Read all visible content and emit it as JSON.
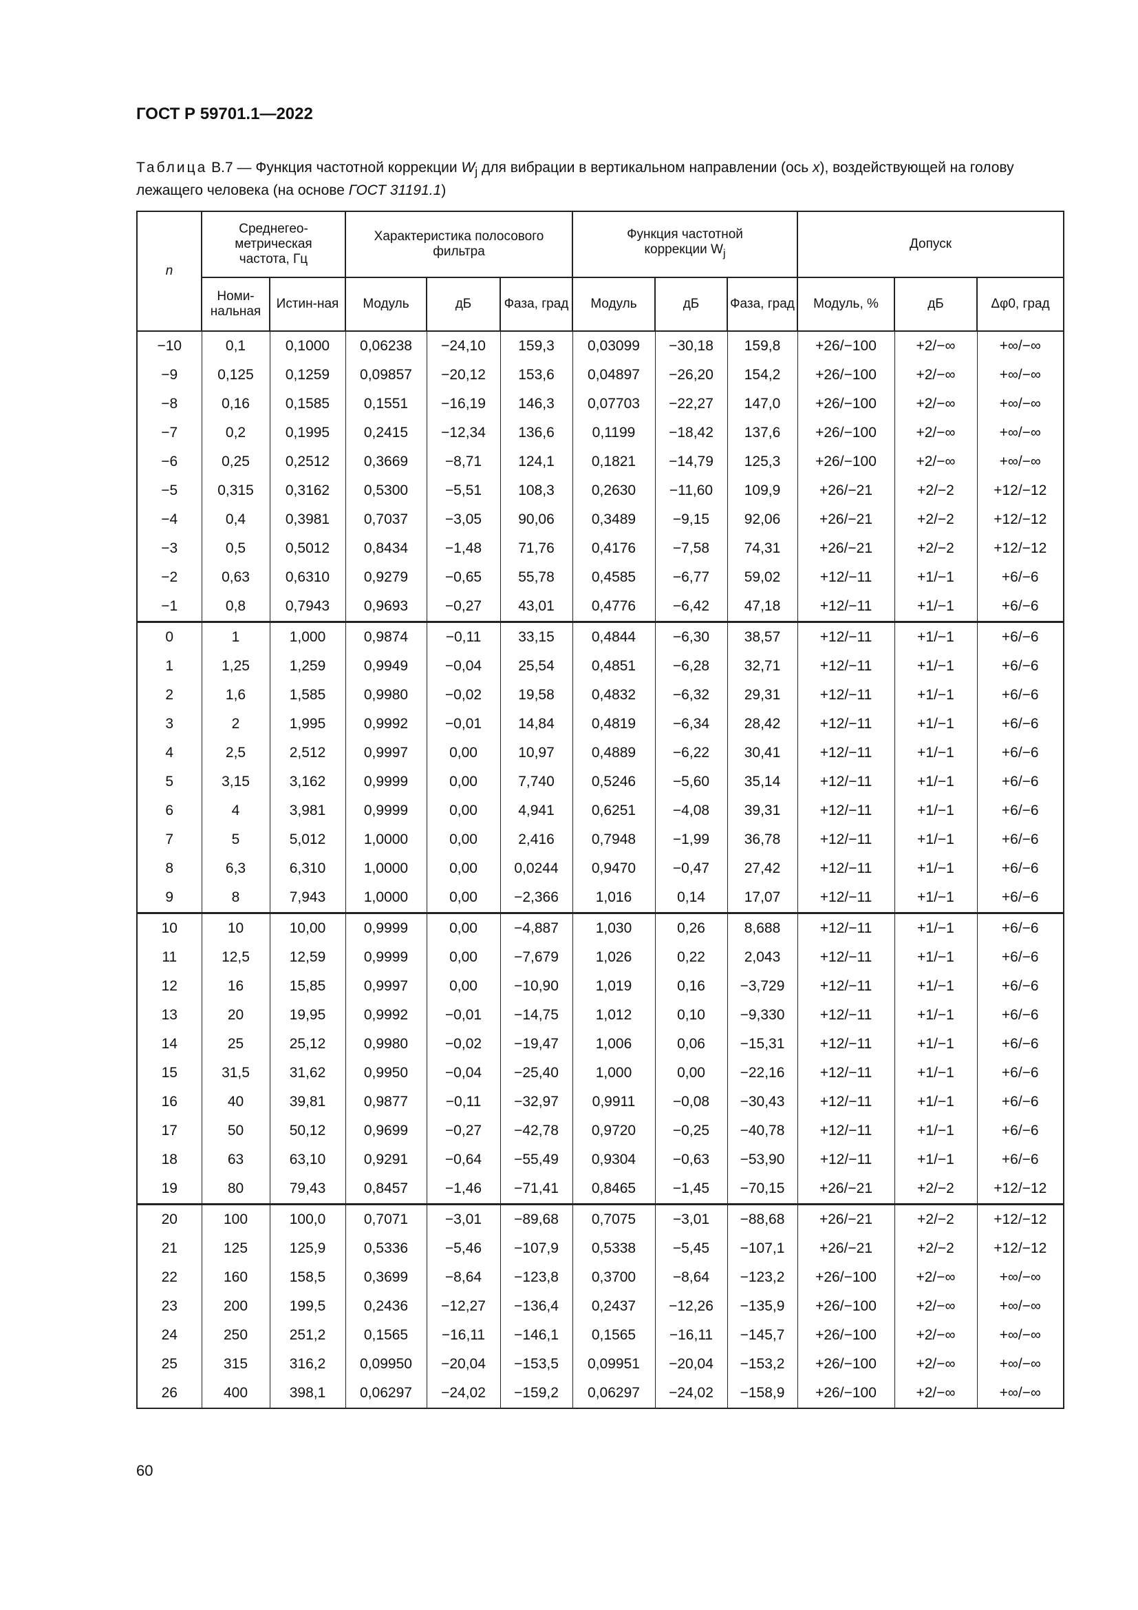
{
  "header": {
    "doc_id": "ГОСТ Р 59701.1—2022"
  },
  "caption": {
    "label": "Таблица",
    "text_before": " В.7 — Функция частотной коррекции ",
    "symbol": "W",
    "sub": "j",
    "text_after": " для вибрации в вертикальном направлении (ось ",
    "axis": "x",
    "text_after2": "), воздействующей на голову лежащего человека (на основе ",
    "ref": "ГОСТ 31191.1",
    "end": ")"
  },
  "table": {
    "head": {
      "n": "n",
      "freq": "Среднегео-метрическая частота, Гц",
      "filter": "Характеристика полосового фильтра",
      "corr": "Функция частотной коррекции W",
      "corr_sub": "j",
      "tol": "Допуск",
      "sub": [
        "Номи-нальная",
        "Истин-ная",
        "Модуль",
        "дБ",
        "Фаза, град",
        "Модуль",
        "дБ",
        "Фаза, град",
        "Модуль, %",
        "дБ",
        "Δφ0, град"
      ]
    },
    "rows": [
      [
        "−10",
        "0,1",
        "0,1000",
        "0,06238",
        "−24,10",
        "159,3",
        "0,03099",
        "−30,18",
        "159,8",
        "+26/−100",
        "+2/−∞",
        "+∞/−∞"
      ],
      [
        "−9",
        "0,125",
        "0,1259",
        "0,09857",
        "−20,12",
        "153,6",
        "0,04897",
        "−26,20",
        "154,2",
        "+26/−100",
        "+2/−∞",
        "+∞/−∞"
      ],
      [
        "−8",
        "0,16",
        "0,1585",
        "0,1551",
        "−16,19",
        "146,3",
        "0,07703",
        "−22,27",
        "147,0",
        "+26/−100",
        "+2/−∞",
        "+∞/−∞"
      ],
      [
        "−7",
        "0,2",
        "0,1995",
        "0,2415",
        "−12,34",
        "136,6",
        "0,1199",
        "−18,42",
        "137,6",
        "+26/−100",
        "+2/−∞",
        "+∞/−∞"
      ],
      [
        "−6",
        "0,25",
        "0,2512",
        "0,3669",
        "−8,71",
        "124,1",
        "0,1821",
        "−14,79",
        "125,3",
        "+26/−100",
        "+2/−∞",
        "+∞/−∞"
      ],
      [
        "−5",
        "0,315",
        "0,3162",
        "0,5300",
        "−5,51",
        "108,3",
        "0,2630",
        "−11,60",
        "109,9",
        "+26/−21",
        "+2/−2",
        "+12/−12"
      ],
      [
        "−4",
        "0,4",
        "0,3981",
        "0,7037",
        "−3,05",
        "90,06",
        "0,3489",
        "−9,15",
        "92,06",
        "+26/−21",
        "+2/−2",
        "+12/−12"
      ],
      [
        "−3",
        "0,5",
        "0,5012",
        "0,8434",
        "−1,48",
        "71,76",
        "0,4176",
        "−7,58",
        "74,31",
        "+26/−21",
        "+2/−2",
        "+12/−12"
      ],
      [
        "−2",
        "0,63",
        "0,6310",
        "0,9279",
        "−0,65",
        "55,78",
        "0,4585",
        "−6,77",
        "59,02",
        "+12/−11",
        "+1/−1",
        "+6/−6"
      ],
      [
        "−1",
        "0,8",
        "0,7943",
        "0,9693",
        "−0,27",
        "43,01",
        "0,4776",
        "−6,42",
        "47,18",
        "+12/−11",
        "+1/−1",
        "+6/−6"
      ],
      [
        "0",
        "1",
        "1,000",
        "0,9874",
        "−0,11",
        "33,15",
        "0,4844",
        "−6,30",
        "38,57",
        "+12/−11",
        "+1/−1",
        "+6/−6"
      ],
      [
        "1",
        "1,25",
        "1,259",
        "0,9949",
        "−0,04",
        "25,54",
        "0,4851",
        "−6,28",
        "32,71",
        "+12/−11",
        "+1/−1",
        "+6/−6"
      ],
      [
        "2",
        "1,6",
        "1,585",
        "0,9980",
        "−0,02",
        "19,58",
        "0,4832",
        "−6,32",
        "29,31",
        "+12/−11",
        "+1/−1",
        "+6/−6"
      ],
      [
        "3",
        "2",
        "1,995",
        "0,9992",
        "−0,01",
        "14,84",
        "0,4819",
        "−6,34",
        "28,42",
        "+12/−11",
        "+1/−1",
        "+6/−6"
      ],
      [
        "4",
        "2,5",
        "2,512",
        "0,9997",
        "0,00",
        "10,97",
        "0,4889",
        "−6,22",
        "30,41",
        "+12/−11",
        "+1/−1",
        "+6/−6"
      ],
      [
        "5",
        "3,15",
        "3,162",
        "0,9999",
        "0,00",
        "7,740",
        "0,5246",
        "−5,60",
        "35,14",
        "+12/−11",
        "+1/−1",
        "+6/−6"
      ],
      [
        "6",
        "4",
        "3,981",
        "0,9999",
        "0,00",
        "4,941",
        "0,6251",
        "−4,08",
        "39,31",
        "+12/−11",
        "+1/−1",
        "+6/−6"
      ],
      [
        "7",
        "5",
        "5,012",
        "1,0000",
        "0,00",
        "2,416",
        "0,7948",
        "−1,99",
        "36,78",
        "+12/−11",
        "+1/−1",
        "+6/−6"
      ],
      [
        "8",
        "6,3",
        "6,310",
        "1,0000",
        "0,00",
        "0,0244",
        "0,9470",
        "−0,47",
        "27,42",
        "+12/−11",
        "+1/−1",
        "+6/−6"
      ],
      [
        "9",
        "8",
        "7,943",
        "1,0000",
        "0,00",
        "−2,366",
        "1,016",
        "0,14",
        "17,07",
        "+12/−11",
        "+1/−1",
        "+6/−6"
      ],
      [
        "10",
        "10",
        "10,00",
        "0,9999",
        "0,00",
        "−4,887",
        "1,030",
        "0,26",
        "8,688",
        "+12/−11",
        "+1/−1",
        "+6/−6"
      ],
      [
        "11",
        "12,5",
        "12,59",
        "0,9999",
        "0,00",
        "−7,679",
        "1,026",
        "0,22",
        "2,043",
        "+12/−11",
        "+1/−1",
        "+6/−6"
      ],
      [
        "12",
        "16",
        "15,85",
        "0,9997",
        "0,00",
        "−10,90",
        "1,019",
        "0,16",
        "−3,729",
        "+12/−11",
        "+1/−1",
        "+6/−6"
      ],
      [
        "13",
        "20",
        "19,95",
        "0,9992",
        "−0,01",
        "−14,75",
        "1,012",
        "0,10",
        "−9,330",
        "+12/−11",
        "+1/−1",
        "+6/−6"
      ],
      [
        "14",
        "25",
        "25,12",
        "0,9980",
        "−0,02",
        "−19,47",
        "1,006",
        "0,06",
        "−15,31",
        "+12/−11",
        "+1/−1",
        "+6/−6"
      ],
      [
        "15",
        "31,5",
        "31,62",
        "0,9950",
        "−0,04",
        "−25,40",
        "1,000",
        "0,00",
        "−22,16",
        "+12/−11",
        "+1/−1",
        "+6/−6"
      ],
      [
        "16",
        "40",
        "39,81",
        "0,9877",
        "−0,11",
        "−32,97",
        "0,9911",
        "−0,08",
        "−30,43",
        "+12/−11",
        "+1/−1",
        "+6/−6"
      ],
      [
        "17",
        "50",
        "50,12",
        "0,9699",
        "−0,27",
        "−42,78",
        "0,9720",
        "−0,25",
        "−40,78",
        "+12/−11",
        "+1/−1",
        "+6/−6"
      ],
      [
        "18",
        "63",
        "63,10",
        "0,9291",
        "−0,64",
        "−55,49",
        "0,9304",
        "−0,63",
        "−53,90",
        "+12/−11",
        "+1/−1",
        "+6/−6"
      ],
      [
        "19",
        "80",
        "79,43",
        "0,8457",
        "−1,46",
        "−71,41",
        "0,8465",
        "−1,45",
        "−70,15",
        "+26/−21",
        "+2/−2",
        "+12/−12"
      ],
      [
        "20",
        "100",
        "100,0",
        "0,7071",
        "−3,01",
        "−89,68",
        "0,7075",
        "−3,01",
        "−88,68",
        "+26/−21",
        "+2/−2",
        "+12/−12"
      ],
      [
        "21",
        "125",
        "125,9",
        "0,5336",
        "−5,46",
        "−107,9",
        "0,5338",
        "−5,45",
        "−107,1",
        "+26/−21",
        "+2/−2",
        "+12/−12"
      ],
      [
        "22",
        "160",
        "158,5",
        "0,3699",
        "−8,64",
        "−123,8",
        "0,3700",
        "−8,64",
        "−123,2",
        "+26/−100",
        "+2/−∞",
        "+∞/−∞"
      ],
      [
        "23",
        "200",
        "199,5",
        "0,2436",
        "−12,27",
        "−136,4",
        "0,2437",
        "−12,26",
        "−135,9",
        "+26/−100",
        "+2/−∞",
        "+∞/−∞"
      ],
      [
        "24",
        "250",
        "251,2",
        "0,1565",
        "−16,11",
        "−146,1",
        "0,1565",
        "−16,11",
        "−145,7",
        "+26/−100",
        "+2/−∞",
        "+∞/−∞"
      ],
      [
        "25",
        "315",
        "316,2",
        "0,09950",
        "−20,04",
        "−153,5",
        "0,09951",
        "−20,04",
        "−153,2",
        "+26/−100",
        "+2/−∞",
        "+∞/−∞"
      ],
      [
        "26",
        "400",
        "398,1",
        "0,06297",
        "−24,02",
        "−159,2",
        "0,06297",
        "−24,02",
        "−158,9",
        "+26/−100",
        "+2/−∞",
        "+∞/−∞"
      ]
    ]
  },
  "footer": {
    "page_number": "60"
  }
}
